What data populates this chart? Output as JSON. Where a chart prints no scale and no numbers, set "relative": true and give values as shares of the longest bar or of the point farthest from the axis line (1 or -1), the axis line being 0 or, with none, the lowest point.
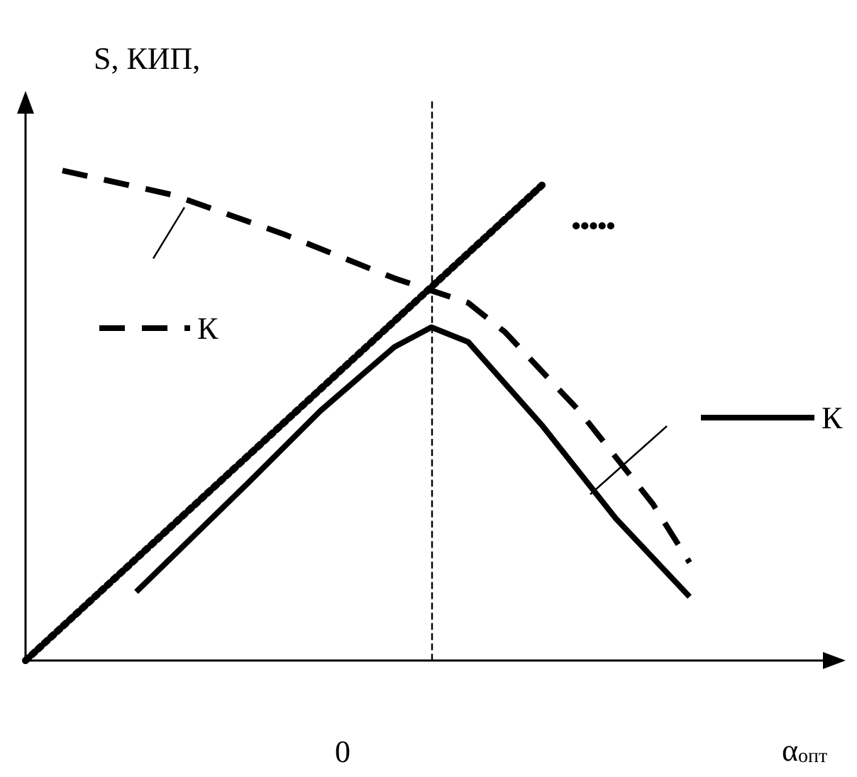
{
  "chart_data": {
    "type": "line",
    "relative": true,
    "ylabel": "S, КИП,",
    "categories": [
      null,
      null,
      null,
      null,
      null,
      null,
      null,
      null,
      null,
      null,
      null,
      null,
      null,
      null,
      null,
      null,
      null,
      null,
      null,
      null,
      null,
      null,
      null
    ],
    "series": [
      {
        "name": "К",
        "color": "#000000",
        "line_style": "dashed",
        "values": [
          null,
          1.0,
          null,
          null,
          0.95,
          null,
          null,
          0.87,
          null,
          null,
          0.78,
          null,
          0.73,
          0.67,
          null,
          0.51,
          null,
          0.32,
          0.2,
          null,
          null,
          null,
          null
        ]
      },
      {
        "name": "К",
        "color": "#000000",
        "line_style": "solid",
        "values": [
          null,
          null,
          null,
          0.14,
          null,
          null,
          0.36,
          null,
          0.51,
          null,
          0.64,
          0.68,
          0.65,
          null,
          0.48,
          null,
          0.29,
          null,
          0.13,
          null,
          null,
          null,
          null
        ]
      },
      {
        "color": "#000000",
        "line_style": "dotted",
        "values": [
          0,
          null,
          null,
          null,
          null,
          null,
          null,
          null,
          null,
          null,
          null,
          null,
          null,
          null,
          0.97,
          null,
          null,
          null,
          null,
          null,
          null,
          null,
          null
        ]
      }
    ],
    "annotations": [
      "0",
      "α$_{опт}$"
    ],
    "legend": "right",
    "marker": "none",
    "grid": false
  }
}
